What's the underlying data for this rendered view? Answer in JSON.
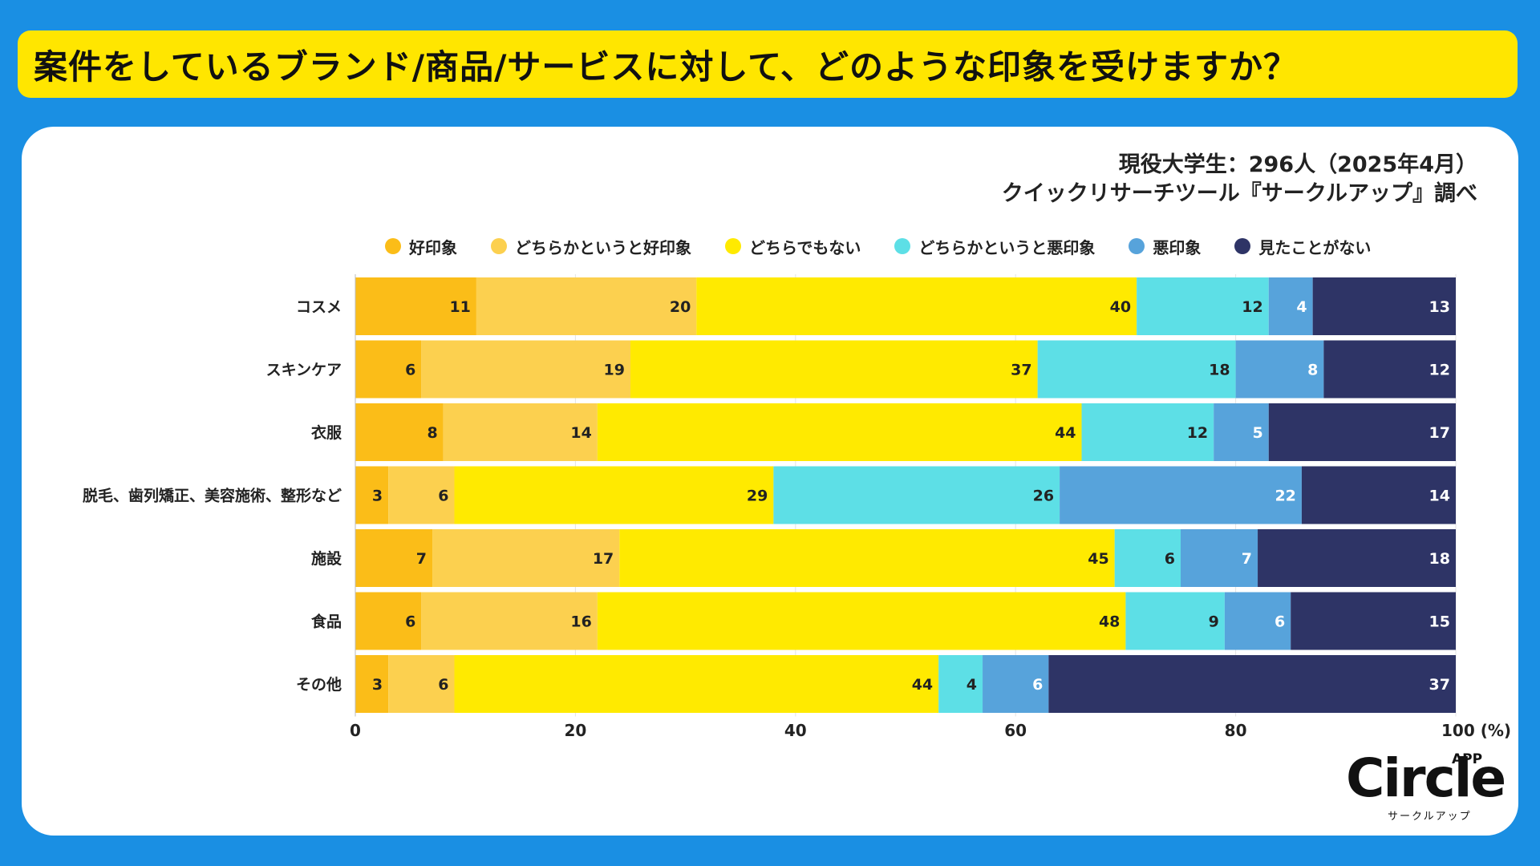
{
  "header": {
    "title": "案件をしているブランド/商品/サービスに対して、どのような印象を受けますか？"
  },
  "source": {
    "line1": "現役大学生：296人（2025年4月）",
    "line2": "クイックリサーチツール『サークルアップ』調べ"
  },
  "logo": {
    "word": "Circle",
    "app": "APP",
    "kana": "サークルアップ"
  },
  "chart_data": {
    "type": "bar",
    "orientation": "horizontal",
    "stacked": true,
    "categories": [
      "コスメ",
      "スキンケア",
      "衣服",
      "脱毛、歯列矯正、美容施術、整形など",
      "施設",
      "食品",
      "その他"
    ],
    "series": [
      {
        "name": "好印象",
        "color": "#fbbd18",
        "values": [
          11,
          6,
          8,
          3,
          7,
          6,
          3
        ]
      },
      {
        "name": "どちらかというと好印象",
        "color": "#fcd04f",
        "values": [
          20,
          19,
          14,
          6,
          17,
          16,
          6
        ]
      },
      {
        "name": "どちらでもない",
        "color": "#ffea00",
        "values": [
          40,
          37,
          44,
          29,
          45,
          48,
          44
        ]
      },
      {
        "name": "どちらかというと悪印象",
        "color": "#5ddfe6",
        "values": [
          12,
          18,
          12,
          26,
          6,
          9,
          4
        ]
      },
      {
        "name": "悪印象",
        "color": "#57a3db",
        "values": [
          4,
          8,
          5,
          22,
          7,
          6,
          6
        ]
      },
      {
        "name": "見たことがない",
        "color": "#2e3466",
        "values": [
          13,
          12,
          17,
          14,
          18,
          15,
          37
        ]
      }
    ],
    "xlim": [
      0,
      100
    ],
    "xticks": [
      "0",
      "20",
      "40",
      "60",
      "80",
      "100 (%)"
    ],
    "grid": true,
    "legend": "top"
  }
}
